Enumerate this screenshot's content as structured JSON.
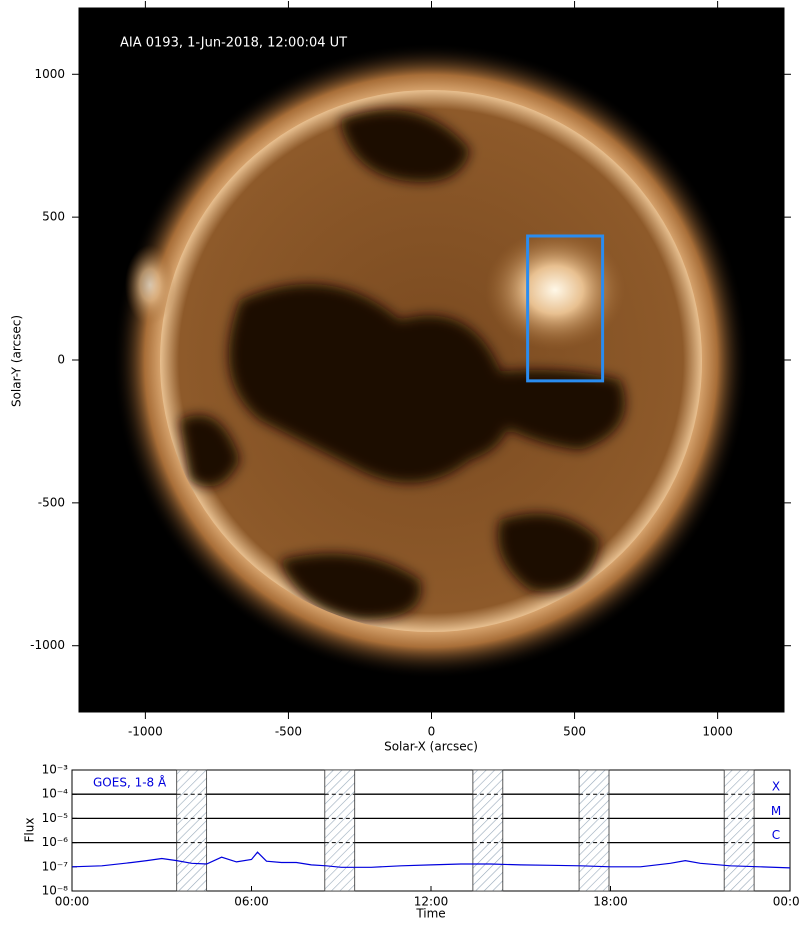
{
  "chart_data": [
    {
      "type": "image",
      "title": "AIA 0193, 1-Jun-2018, 12:00:04 UT",
      "x_label": "Solar-X (arcsec)",
      "y_label": "Solar-Y (arcsec)",
      "xlim": [
        -1232,
        1232
      ],
      "ylim": [
        -1232,
        1232
      ],
      "xticks": [
        -1000,
        -500,
        0,
        500,
        1000
      ],
      "yticks": [
        -1000,
        -500,
        0,
        500,
        1000
      ],
      "box": {
        "x": [
          336,
          598
        ],
        "y": [
          -73,
          434
        ],
        "color": "#2a8cf0"
      }
    },
    {
      "type": "line",
      "title": "GOES, 1-8 Å",
      "x_label": "Time",
      "y_label": "Flux",
      "color": "#0000dd",
      "log_y": true,
      "xlim": [
        0,
        24
      ],
      "ylim": [
        1e-08,
        0.001
      ],
      "xticks": [
        {
          "value": 0,
          "label": "00:00"
        },
        {
          "value": 6,
          "label": "06:00"
        },
        {
          "value": 12,
          "label": "12:00"
        },
        {
          "value": 18,
          "label": "18:00"
        },
        {
          "value": 24,
          "label": "00:00"
        }
      ],
      "yticks": [
        {
          "value": 1e-08,
          "label": "10⁻⁸"
        },
        {
          "value": 1e-07,
          "label": "10⁻⁷"
        },
        {
          "value": 1e-06,
          "label": "10⁻⁶"
        },
        {
          "value": 1e-05,
          "label": "10⁻⁵"
        },
        {
          "value": 0.0001,
          "label": "10⁻⁴"
        },
        {
          "value": 0.001,
          "label": "10⁻³"
        }
      ],
      "flare_classes": [
        {
          "label": "X",
          "value": 0.0001
        },
        {
          "label": "M",
          "value": 1e-05
        },
        {
          "label": "C",
          "value": 1e-06
        }
      ],
      "shaded_ranges": [
        [
          3.5,
          4.5
        ],
        [
          8.45,
          9.45
        ],
        [
          13.4,
          14.4
        ],
        [
          16.95,
          17.95
        ],
        [
          21.8,
          22.8
        ]
      ],
      "x": [
        0,
        1,
        2,
        2.5,
        3,
        3.5,
        4,
        4.5,
        5,
        5.5,
        6,
        6.2,
        6.5,
        7,
        7.5,
        8,
        8.5,
        9,
        10,
        11,
        12,
        13,
        14,
        15,
        16,
        17,
        18,
        19,
        20,
        20.5,
        21,
        22,
        23,
        24
      ],
      "values": [
        1e-07,
        1.1e-07,
        1.5e-07,
        1.8e-07,
        2.2e-07,
        1.8e-07,
        1.4e-07,
        1.3e-07,
        2.5e-07,
        1.6e-07,
        2e-07,
        4e-07,
        1.7e-07,
        1.5e-07,
        1.5e-07,
        1.2e-07,
        1.1e-07,
        9.5e-08,
        9.5e-08,
        1.1e-07,
        1.2e-07,
        1.3e-07,
        1.3e-07,
        1.2e-07,
        1.15e-07,
        1.1e-07,
        1e-07,
        1e-07,
        1.4e-07,
        1.8e-07,
        1.4e-07,
        1.1e-07,
        1e-07,
        9e-08
      ]
    }
  ]
}
